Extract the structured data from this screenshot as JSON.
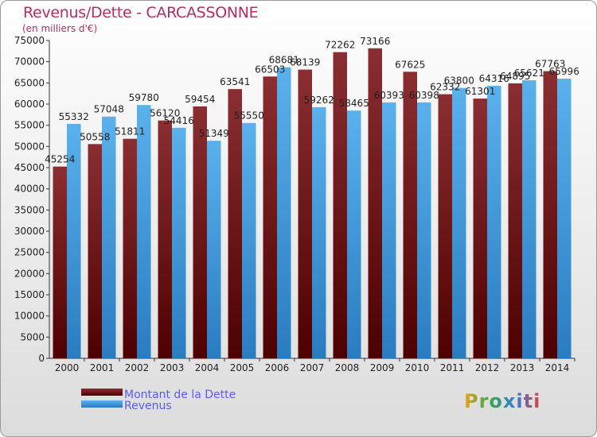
{
  "title": "Revenus/Dette - CARCASSONNE",
  "subtitle": "(en milliers d'€)",
  "logo_text": "Proxiti",
  "colors": {
    "dette": "#7a1f22",
    "revenus": "#4aa3e2",
    "title": "#b0305e",
    "legend_text": "#5a5aff"
  },
  "chart_data": {
    "type": "bar",
    "categories": [
      "2000",
      "2001",
      "2002",
      "2003",
      "2004",
      "2005",
      "2006",
      "2007",
      "2008",
      "2009",
      "2010",
      "2011",
      "2012",
      "2013",
      "2014"
    ],
    "series": [
      {
        "name": "Montant de la Dette",
        "values": [
          45254,
          50558,
          51811,
          56120,
          59454,
          63541,
          66503,
          68139,
          72262,
          73166,
          67625,
          62332,
          61301,
          64895,
          67763
        ]
      },
      {
        "name": "Revenus",
        "values": [
          55332,
          57048,
          59780,
          54416,
          51349,
          55550,
          68681,
          59262,
          58465,
          60393,
          60398,
          63800,
          64316,
          65621,
          65996
        ]
      }
    ],
    "y_ticks": [
      0,
      5000,
      10000,
      15000,
      20000,
      25000,
      30000,
      35000,
      40000,
      45000,
      50000,
      55000,
      60000,
      65000,
      70000,
      75000
    ],
    "ylim": [
      0,
      75000
    ],
    "legend_position": "bottom-left",
    "grid": false
  }
}
